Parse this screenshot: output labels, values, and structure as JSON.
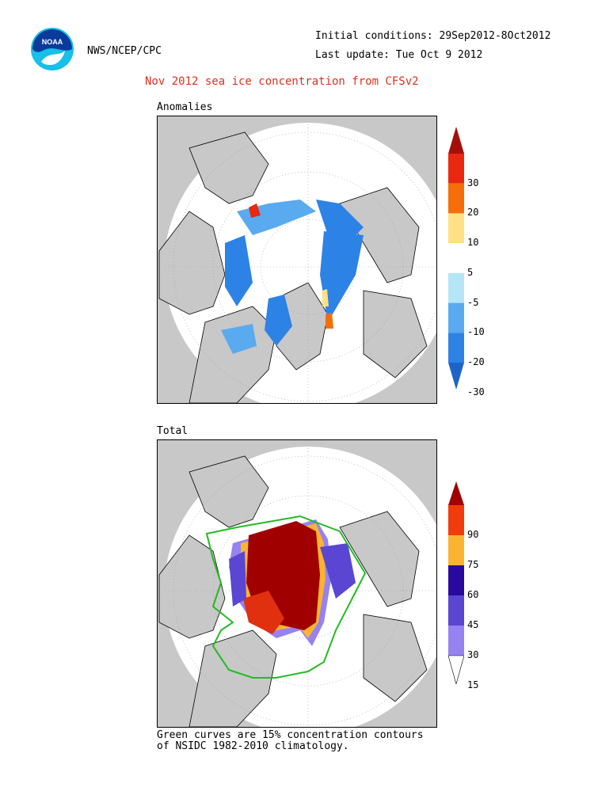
{
  "header": {
    "agency": "NWS/NCEP/CPC",
    "initial_conditions": "Initial conditions: 29Sep2012-8Oct2012",
    "last_update": "Last update: Tue Oct 9 2012",
    "title": "Nov 2012 sea ice concentration from CFSv2",
    "logo_text": "NOAA"
  },
  "panels": {
    "anomalies": {
      "label": "Anomalies",
      "colorbar_ticks": [
        "30",
        "20",
        "10",
        "5",
        "-5",
        "-10",
        "-20",
        "-30"
      ],
      "colorbar_colors": [
        "#a50f0a",
        "#e8280f",
        "#f56e0a",
        "#fde184",
        "#ffffff",
        "#b4e6f5",
        "#5aaaf0",
        "#2d82e6",
        "#1e64c8"
      ]
    },
    "total": {
      "label": "Total",
      "colorbar_ticks": [
        "90",
        "75",
        "60",
        "45",
        "30",
        "15"
      ],
      "colorbar_colors": [
        "#a00000",
        "#f03c0a",
        "#fab432",
        "#2a0a9e",
        "#5a46d2",
        "#9682f0",
        "#ffffff"
      ]
    }
  },
  "footnote": {
    "line1": "Green curves are 15% concentration contours",
    "line2": "of NSIDC 1982-2010 climatology."
  },
  "colors": {
    "land": "#c8c8c8",
    "ocean": "#ffffff",
    "title": "#e0301e",
    "climatology_contour": "#22bb22"
  }
}
